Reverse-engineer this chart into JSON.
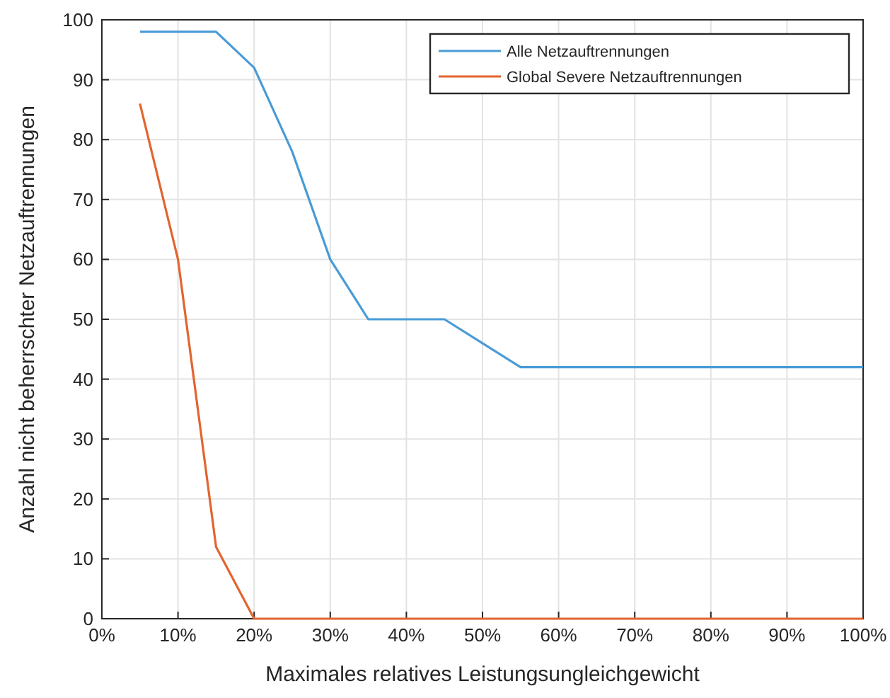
{
  "chart_data": {
    "type": "line",
    "xlabel": "Maximales relatives Leistungsungleichgewicht",
    "ylabel": "Anzahl nicht beherrschter Netzauftrennungen",
    "x": [
      5,
      10,
      15,
      20,
      25,
      30,
      35,
      40,
      45,
      50,
      55,
      60,
      65,
      70,
      75,
      80,
      85,
      90,
      95,
      100
    ],
    "series": [
      {
        "name": "Alle Netzauftrennungen",
        "color": "#4a9bd6",
        "values": [
          98,
          98,
          98,
          92,
          78,
          60,
          50,
          50,
          50,
          46,
          42,
          42,
          42,
          42,
          42,
          42,
          42,
          42,
          42,
          42
        ]
      },
      {
        "name": "Global Severe Netzauftrennungen",
        "color": "#e2652f",
        "values": [
          86,
          60,
          12,
          0,
          0,
          0,
          0,
          0,
          0,
          0,
          0,
          0,
          0,
          0,
          0,
          0,
          0,
          0,
          0,
          0
        ]
      }
    ],
    "xlim": [
      0,
      100
    ],
    "xticks": [
      {
        "value": 0,
        "label": "0%"
      },
      {
        "value": 10,
        "label": "10%"
      },
      {
        "value": 20,
        "label": "20%"
      },
      {
        "value": 30,
        "label": "30%"
      },
      {
        "value": 40,
        "label": "40%"
      },
      {
        "value": 50,
        "label": "50%"
      },
      {
        "value": 60,
        "label": "60%"
      },
      {
        "value": 70,
        "label": "70%"
      },
      {
        "value": 80,
        "label": "80%"
      },
      {
        "value": 90,
        "label": "90%"
      },
      {
        "value": 100,
        "label": "100%"
      }
    ],
    "ylim": [
      0,
      100
    ],
    "yticks": [
      0,
      10,
      20,
      30,
      40,
      50,
      60,
      70,
      80,
      90,
      100
    ],
    "grid": true,
    "legend": "top right",
    "marker": "none",
    "line_style": "solid"
  }
}
